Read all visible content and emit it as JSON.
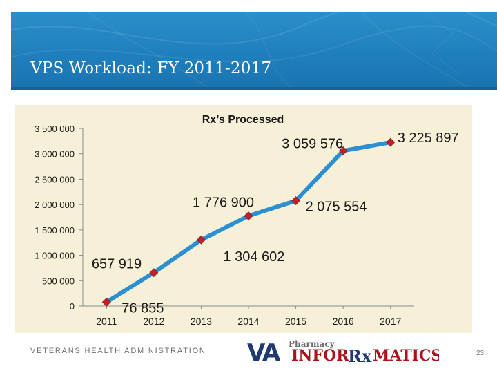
{
  "slide": {
    "title": "VPS Workload: FY 2011-2017",
    "footer": "VETERANS HEALTH ADMINISTRATION",
    "page_number": "23",
    "logo": {
      "text_va": "VA",
      "text_pharmacy": "Pharmacy",
      "text_infor": "INFOR",
      "text_rx": "Rx",
      "text_matics": "MATICS"
    }
  },
  "colors": {
    "header_blue": "#1f7fbd",
    "chart_bg": "#f7f0d8",
    "line": "#2b8fd1",
    "marker": "#c0202a",
    "logo_navy": "#1f3a6e",
    "logo_red": "#a8141c"
  },
  "chart_data": {
    "type": "line",
    "title": "Rx’s Processed",
    "xlabel": "",
    "ylabel": "",
    "categories": [
      "2011",
      "2012",
      "2013",
      "2014",
      "2015",
      "2016",
      "2017"
    ],
    "series": [
      {
        "values": [
          76855,
          657919,
          1304602,
          1776900,
          2075554,
          3059576,
          3225897
        ]
      }
    ],
    "data_labels": {
      "2011": "76 855",
      "2012": "657 919",
      "2013": "1 304 602",
      "2014": "1 776 900",
      "2015": "2 075 554",
      "2016": "3 059 576",
      "2017": "3 225 897"
    },
    "y_ticks": [
      0,
      500000,
      1000000,
      1500000,
      2000000,
      2500000,
      3000000,
      3500000
    ],
    "y_tick_labels": [
      "0",
      "500 000",
      "1 000 000",
      "1 500 000",
      "2 000 000",
      "2 500 000",
      "3 000 000",
      "3 500 000"
    ],
    "ylim": [
      0,
      3500000
    ],
    "grid": false,
    "legend": "none"
  }
}
